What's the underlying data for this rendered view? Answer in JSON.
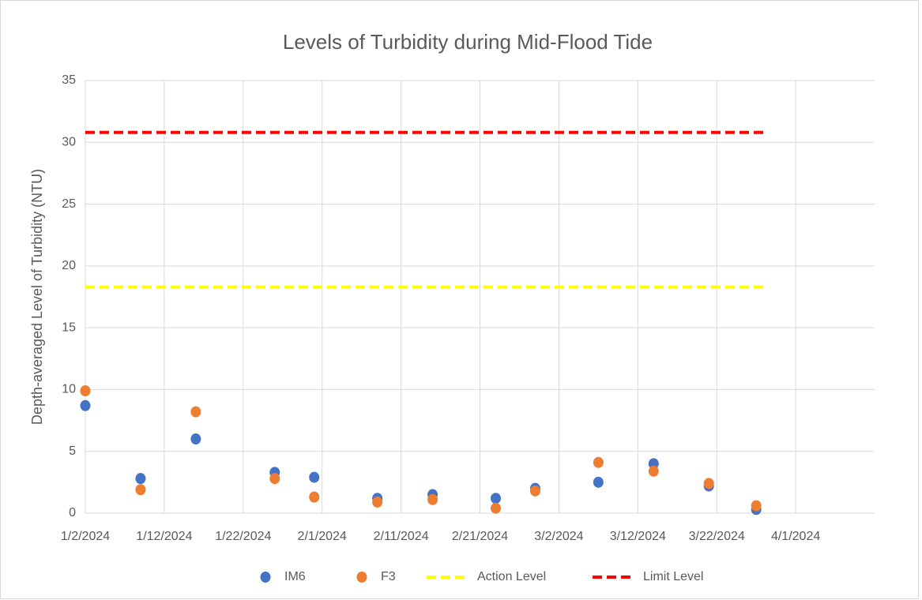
{
  "chart_data": {
    "type": "scatter",
    "title": "Levels of Turbidity during Mid-Flood Tide",
    "y_label": "Depth-averaged Level of  Turbidity (NTU)",
    "xlim": [
      "1/2/2024",
      "4/11/2024"
    ],
    "xticks": [
      "1/2/2024",
      "1/12/2024",
      "1/22/2024",
      "2/1/2024",
      "2/11/2024",
      "2/21/2024",
      "3/2/2024",
      "3/12/2024",
      "3/22/2024",
      "4/1/2024"
    ],
    "ylim": [
      0,
      35
    ],
    "yticks": [
      0,
      5,
      10,
      15,
      20,
      25,
      30,
      35
    ],
    "grid": true,
    "legend": "bottom",
    "series": [
      {
        "name": "IM6",
        "color": "#4472c4",
        "marker": "circle",
        "x": [
          "1/2/2024",
          "1/9/2024",
          "1/16/2024",
          "1/26/2024",
          "1/31/2024",
          "2/8/2024",
          "2/15/2024",
          "2/23/2024",
          "2/28/2024",
          "3/7/2024",
          "3/14/2024",
          "3/21/2024",
          "3/27/2024"
        ],
        "values": [
          8.7,
          2.8,
          6.0,
          3.3,
          2.9,
          1.2,
          1.5,
          1.2,
          2.0,
          2.5,
          4.0,
          2.2,
          0.3
        ]
      },
      {
        "name": "F3",
        "color": "#ed7d31",
        "marker": "circle",
        "x": [
          "1/2/2024",
          "1/9/2024",
          "1/16/2024",
          "1/26/2024",
          "1/31/2024",
          "2/8/2024",
          "2/15/2024",
          "2/23/2024",
          "2/28/2024",
          "3/7/2024",
          "3/14/2024",
          "3/21/2024",
          "3/27/2024"
        ],
        "values": [
          9.9,
          1.9,
          8.2,
          2.8,
          1.3,
          0.9,
          1.1,
          0.4,
          1.8,
          4.1,
          3.4,
          2.4,
          0.6
        ]
      },
      {
        "name": "Action Level",
        "color": "#ffff00",
        "line_style": "dashed",
        "x": [
          "1/2/2024",
          "3/28/2024"
        ],
        "values": [
          18.3,
          18.3
        ]
      },
      {
        "name": "Limit Level",
        "color": "#ff0000",
        "line_style": "dashed",
        "x": [
          "1/2/2024",
          "3/28/2024"
        ],
        "values": [
          30.8,
          30.8
        ]
      }
    ]
  }
}
